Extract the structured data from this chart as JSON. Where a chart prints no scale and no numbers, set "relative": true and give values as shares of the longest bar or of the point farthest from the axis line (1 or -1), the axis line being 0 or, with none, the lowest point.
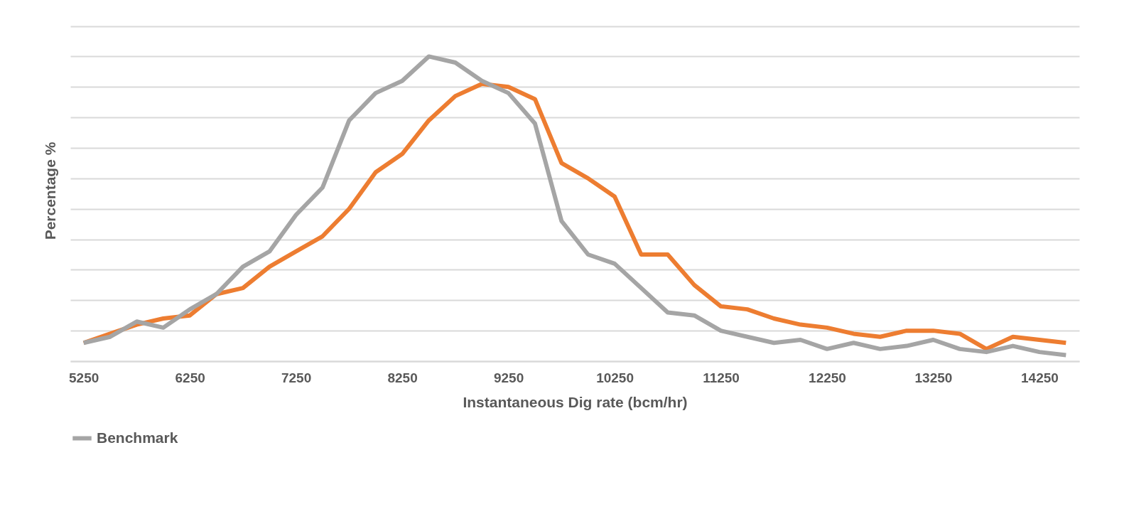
{
  "chart_data": {
    "type": "line",
    "xlabel": "Instantaneous Dig rate (bcm/hr)",
    "ylabel": "Percentage %",
    "relative": true,
    "grid": "y",
    "legend": "bottom",
    "line_style": "solid",
    "marker": "none",
    "categories": [
      "5250",
      null,
      null,
      null,
      "6250",
      null,
      null,
      null,
      "7250",
      null,
      null,
      null,
      "8250",
      null,
      null,
      null,
      "9250",
      null,
      null,
      null,
      "10250",
      null,
      null,
      null,
      "11250",
      null,
      null,
      null,
      "12250",
      null,
      null,
      null,
      "13250",
      null,
      null,
      null,
      "14250",
      null
    ],
    "series": [
      {
        "color": "#ed7d31",
        "values": [
          0.06,
          0.09,
          0.12,
          0.14,
          0.15,
          0.22,
          0.24,
          0.31,
          0.36,
          0.41,
          0.5,
          0.62,
          0.68,
          0.79,
          0.87,
          0.91,
          0.9,
          0.86,
          0.65,
          0.6,
          0.54,
          0.35,
          0.35,
          0.25,
          0.18,
          0.17,
          0.14,
          0.12,
          0.11,
          0.09,
          0.08,
          0.1,
          0.1,
          0.09,
          0.04,
          0.08,
          0.07,
          0.06
        ]
      },
      {
        "name": "Benchmark",
        "color": "#a5a5a5",
        "values": [
          0.06,
          0.08,
          0.13,
          0.11,
          0.17,
          0.22,
          0.31,
          0.36,
          0.48,
          0.57,
          0.79,
          0.88,
          0.92,
          1,
          0.98,
          0.92,
          0.88,
          0.78,
          0.46,
          0.35,
          0.32,
          0.24,
          0.16,
          0.15,
          0.1,
          0.08,
          0.06,
          0.07,
          0.04,
          0.06,
          0.04,
          0.05,
          0.07,
          0.04,
          0.03,
          0.05,
          0.03,
          0.02
        ]
      }
    ]
  }
}
